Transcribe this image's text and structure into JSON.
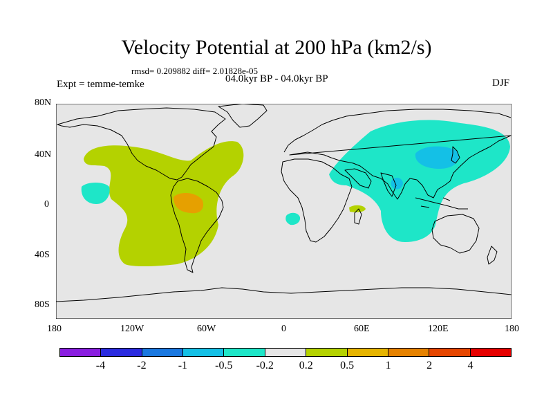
{
  "title": "Velocity Potential at 200 hPa (km2/s)",
  "stats": "rmsd= 0.209882 diff= 2.01828e-05",
  "period": "04.0kyr BP - 04.0kyr BP",
  "expt": "Expt = temme-temke",
  "season": "DJF",
  "lat_labels": [
    "80N",
    "40N",
    "0",
    "40S",
    "80S"
  ],
  "lon_labels": [
    "180",
    "120W",
    "60W",
    "0",
    "60E",
    "120E",
    "180"
  ],
  "colorbar": {
    "labels": [
      "-4",
      "-2",
      "-1",
      "-0.5",
      "-0.2",
      "0.2",
      "0.5",
      "1",
      "2",
      "4"
    ],
    "colors": [
      "#8a1ee0",
      "#2b2be0",
      "#1a78e0",
      "#14c0e6",
      "#1ee6c8",
      "#e6e6e6",
      "#b4d200",
      "#e6b400",
      "#e68200",
      "#e64600",
      "#e60000"
    ]
  },
  "field_colors": {
    "background": "#e6e6e6",
    "cyan": "#1ee6c8",
    "lightblue": "#14c0e6",
    "green": "#b4d200",
    "orange": "#e6a000"
  }
}
